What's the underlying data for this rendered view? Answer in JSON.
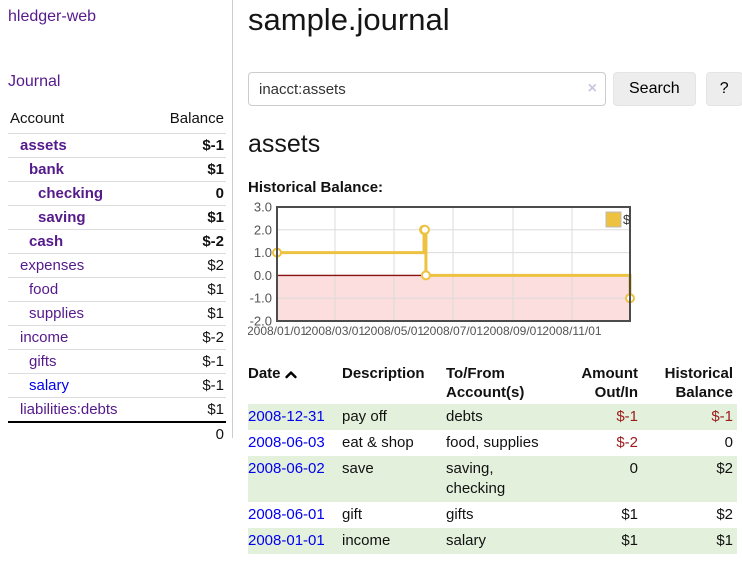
{
  "app": {
    "title": "hledger-web"
  },
  "sidebar": {
    "journal_label": "Journal",
    "accounts_table": {
      "headers": {
        "account": "Account",
        "balance": "Balance"
      },
      "rows": [
        {
          "name": "assets",
          "balance": "$-1",
          "depth": 1,
          "bold": true,
          "balance_tone": "neg-strong",
          "link_color": "purple"
        },
        {
          "name": "bank",
          "balance": "$1",
          "depth": 2,
          "bold": true,
          "balance_tone": "plain",
          "link_color": "purple"
        },
        {
          "name": "checking",
          "balance": "0",
          "depth": 3,
          "bold": true,
          "balance_tone": "plain",
          "link_color": "purple"
        },
        {
          "name": "saving",
          "balance": "$1",
          "depth": 3,
          "bold": true,
          "balance_tone": "plain",
          "link_color": "purple"
        },
        {
          "name": "cash",
          "balance": "$-2",
          "depth": 2,
          "bold": true,
          "balance_tone": "neg-strong",
          "link_color": "purple"
        },
        {
          "name": "expenses",
          "balance": "$2",
          "depth": 1,
          "bold": false,
          "balance_tone": "plain",
          "link_color": "purple"
        },
        {
          "name": "food",
          "balance": "$1",
          "depth": 2,
          "bold": false,
          "balance_tone": "plain",
          "link_color": "purple"
        },
        {
          "name": "supplies",
          "balance": "$1",
          "depth": 2,
          "bold": false,
          "balance_tone": "plain",
          "link_color": "purple"
        },
        {
          "name": "income",
          "balance": "$-2",
          "depth": 1,
          "bold": false,
          "balance_tone": "neg-soft",
          "link_color": "purple"
        },
        {
          "name": "gifts",
          "balance": "$-1",
          "depth": 2,
          "bold": false,
          "balance_tone": "neg-soft",
          "link_color": "purple"
        },
        {
          "name": "salary",
          "balance": "$-1",
          "depth": 2,
          "bold": false,
          "balance_tone": "neg-soft",
          "link_color": "blue"
        },
        {
          "name": "liabilities:debts",
          "balance": "$1",
          "depth": 1,
          "bold": false,
          "balance_tone": "plain",
          "link_color": "purple"
        }
      ],
      "total": "0"
    }
  },
  "header": {
    "title": "sample.journal"
  },
  "search": {
    "value": "inacct:assets",
    "clear_icon": "×",
    "button_label": "Search",
    "help_label": "?"
  },
  "account_page": {
    "heading": "assets",
    "chart_label": "Historical Balance:"
  },
  "chart_data": {
    "type": "line",
    "title": "Historical Balance",
    "step": true,
    "series": [
      {
        "name": "$",
        "color": "#edc240",
        "points": [
          [
            "2008-01-01",
            1.0
          ],
          [
            "2008-06-01",
            2.0
          ],
          [
            "2008-06-02",
            2.0
          ],
          [
            "2008-06-03",
            0.0
          ],
          [
            "2008-12-31",
            -1.0
          ]
        ]
      }
    ],
    "x_ticks": [
      {
        "date": "2008-01-01",
        "label": "2008/01/01"
      },
      {
        "date": "2008-03-01",
        "label": "2008/03/01"
      },
      {
        "date": "2008-05-01",
        "label": "2008/05/01"
      },
      {
        "date": "2008-07-01",
        "label": "2008/07/01"
      },
      {
        "date": "2008-09-01",
        "label": "2008/09/01"
      },
      {
        "date": "2008-11-01",
        "label": "2008/11/01"
      }
    ],
    "y_ticks": [
      {
        "value": 3,
        "label": "3.0"
      },
      {
        "value": 2,
        "label": "2.0"
      },
      {
        "value": 1,
        "label": "1.0"
      },
      {
        "value": 0,
        "label": "0.0"
      },
      {
        "value": -1,
        "label": "-1.0"
      },
      {
        "value": -2,
        "label": "-2.0"
      }
    ],
    "xlim": [
      "2008-01-01",
      "2008-12-31"
    ],
    "ylim": [
      -2,
      3
    ],
    "grid": true,
    "legend_position": "top-right",
    "colors": {
      "negative_region": "#fbdedd",
      "zero_line": "#871111",
      "grid_line": "#dcdcdc",
      "border": "#4c4c4c",
      "tick_label": "#545454",
      "marker_fill": "#ffffff"
    }
  },
  "register_table": {
    "headers": {
      "date": "Date",
      "sort_indicator": "ascending",
      "description": "Description",
      "account": "To/From Account(s)",
      "amount": "Amount Out/In",
      "balance": "Historical Balance"
    },
    "rows": [
      {
        "date": "2008-12-31",
        "description": "pay off",
        "accounts": "debts",
        "amount": "$-1",
        "amount_tone": "neg",
        "balance": "$-1",
        "balance_tone": "neg"
      },
      {
        "date": "2008-06-03",
        "description": "eat & shop",
        "accounts": "food, supplies",
        "amount": "$-2",
        "amount_tone": "neg",
        "balance": "0",
        "balance_tone": "plain"
      },
      {
        "date": "2008-06-02",
        "description": "save",
        "accounts": "saving, checking",
        "amount": "0",
        "amount_tone": "plain",
        "balance": "$2",
        "balance_tone": "plain"
      },
      {
        "date": "2008-06-01",
        "description": "gift",
        "accounts": "gifts",
        "amount": "$1",
        "amount_tone": "plain",
        "balance": "$2",
        "balance_tone": "plain"
      },
      {
        "date": "2008-01-01",
        "description": "income",
        "accounts": "salary",
        "amount": "$1",
        "amount_tone": "plain",
        "balance": "$1",
        "balance_tone": "plain"
      }
    ]
  },
  "colors": {
    "link_purple": "#551a8b",
    "link_blue": "#0000ee",
    "negative_strong": "#9c1b1b",
    "negative_soft": "#b07d7d",
    "row_green": "#e3f0dc",
    "accent_gold": "#edc240",
    "button_gray": "#ededed"
  }
}
